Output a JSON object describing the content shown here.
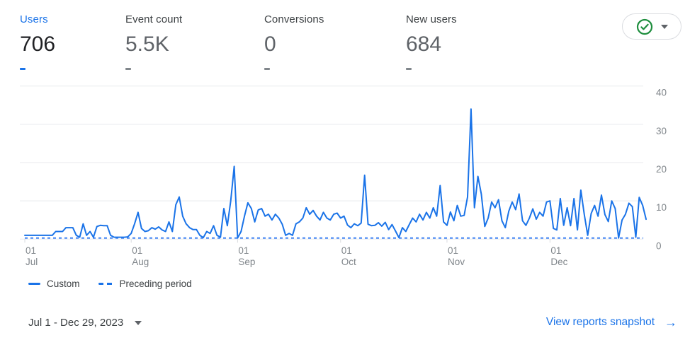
{
  "metrics": [
    {
      "label": "Users",
      "value": "706",
      "delta": "-",
      "selected": true
    },
    {
      "label": "Event count",
      "value": "5.5K",
      "delta": "-",
      "selected": false
    },
    {
      "label": "Conversions",
      "value": "0",
      "delta": "-",
      "selected": false
    },
    {
      "label": "New users",
      "value": "684",
      "delta": "-",
      "selected": false
    }
  ],
  "data_quality_button": {
    "icon": "check-circle",
    "state": "good"
  },
  "colors": {
    "accent": "#1a73e8",
    "dashed_line": "#4285f4",
    "grid": "#e8eaed",
    "tick": "#dadce0",
    "axis_text": "#80868b",
    "green": "#1e8e3e",
    "selected_text": "#202124",
    "muted_text": "#5f6368"
  },
  "chart_data": {
    "type": "line",
    "metric": "Users",
    "date_range": "Jul 1 - Dec 29, 2023",
    "ylim": [
      0,
      40
    ],
    "y_ticks": [
      0,
      10,
      20,
      30,
      40
    ],
    "y_axis_side": "right",
    "grid": "horizontal",
    "legend_position": "bottom-left",
    "x_ticks": [
      {
        "day_index": 0,
        "top": "01",
        "bottom": "Jul"
      },
      {
        "day_index": 31,
        "top": "01",
        "bottom": "Aug"
      },
      {
        "day_index": 62,
        "top": "01",
        "bottom": "Sep"
      },
      {
        "day_index": 92,
        "top": "01",
        "bottom": "Oct"
      },
      {
        "day_index": 123,
        "top": "01",
        "bottom": "Nov"
      },
      {
        "day_index": 153,
        "top": "01",
        "bottom": "Dec"
      }
    ],
    "series": [
      {
        "name": "Custom",
        "style": "solid",
        "color": "#1a73e8",
        "values": [
          1,
          1,
          1,
          1,
          1,
          1,
          1,
          1,
          1,
          2,
          2,
          2,
          3,
          3,
          3,
          1,
          0.5,
          4,
          1,
          2,
          0.5,
          3.3,
          3.6,
          3.5,
          3.5,
          1,
          0.5,
          0.5,
          0.5,
          0.5,
          0.6,
          1.5,
          4,
          7,
          2.8,
          2,
          2.2,
          3,
          2.6,
          3.2,
          2.4,
          2,
          4.5,
          2,
          9,
          11,
          6,
          4,
          3,
          2.5,
          2.5,
          1,
          0.4,
          2,
          1.5,
          3.5,
          1,
          0.5,
          8,
          3.5,
          10,
          19,
          0.3,
          2,
          6,
          9.5,
          8,
          4.5,
          7.6,
          8,
          6,
          6.5,
          5,
          6.5,
          5.5,
          3.9,
          1,
          1.5,
          1,
          4,
          4.5,
          5.5,
          8.2,
          6.5,
          7.5,
          6,
          5,
          7,
          5.5,
          5,
          6.5,
          6.8,
          5.5,
          6,
          3.7,
          3,
          4,
          3.5,
          4.2,
          16.7,
          3.9,
          3.5,
          3.6,
          4.3,
          3.4,
          4.4,
          2.5,
          3.8,
          2.1,
          0.4,
          3,
          2,
          3.8,
          5.5,
          4.5,
          6.5,
          5,
          7,
          5.5,
          8.2,
          6,
          14,
          4.5,
          3.6,
          7.1,
          4.8,
          8.8,
          6,
          6.2,
          11,
          34,
          8.2,
          16.4,
          11.8,
          3.3,
          5.5,
          9.7,
          8.2,
          10.3,
          4.8,
          3,
          7.3,
          9.7,
          7.7,
          11.8,
          4.8,
          3.6,
          5.5,
          7.9,
          5.2,
          7,
          6,
          9.7,
          10,
          2.8,
          2.4,
          10.6,
          3.6,
          8.2,
          3.5,
          10.6,
          2.4,
          12.8,
          6.4,
          1,
          6.7,
          8.8,
          6,
          11.5,
          6.4,
          4.6,
          10,
          8,
          0.3,
          5,
          6.5,
          9.4,
          8.5,
          0.5,
          10.9,
          8.8,
          5.2
        ]
      },
      {
        "name": "Preceding period",
        "style": "dashed",
        "color": "#4285f4",
        "constant_value": 0
      }
    ]
  },
  "legend": [
    {
      "label": "Custom",
      "style": "solid"
    },
    {
      "label": "Preceding period",
      "style": "dashed"
    }
  ],
  "footer": {
    "date_range": "Jul 1 - Dec 29, 2023",
    "link": "View reports snapshot",
    "arrow": "→"
  }
}
